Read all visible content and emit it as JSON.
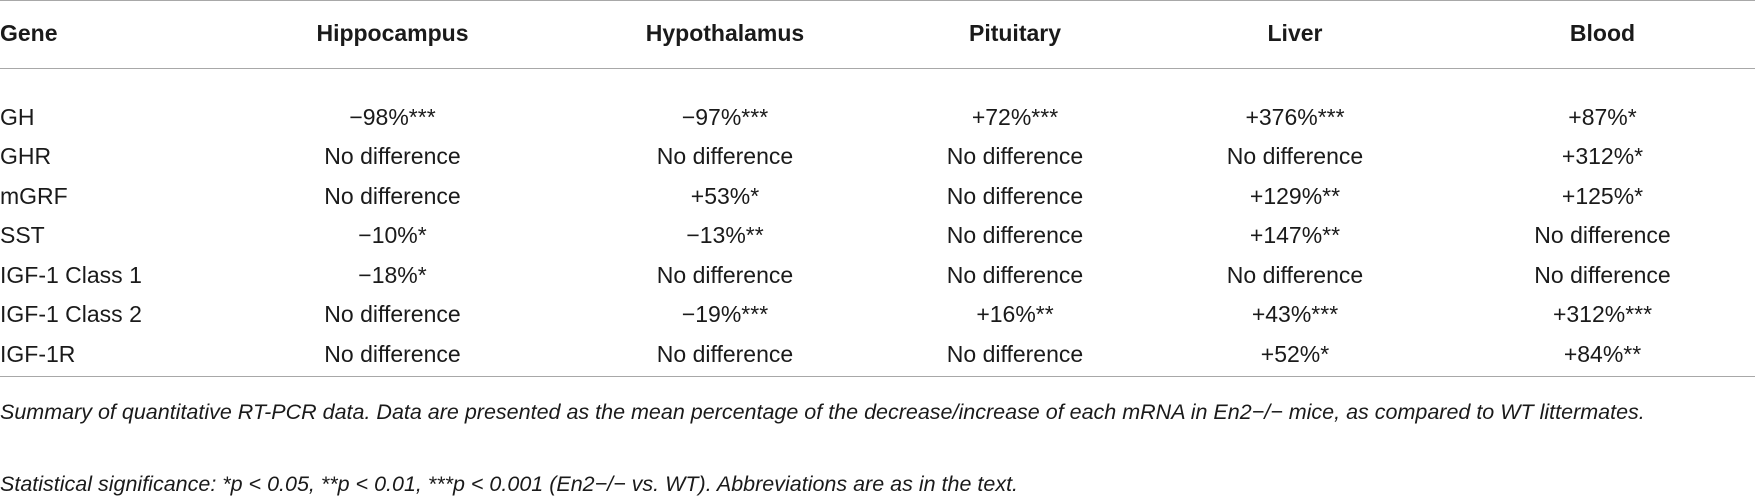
{
  "table": {
    "columns": [
      "Gene",
      "Hippocampus",
      "Hypothalamus",
      "Pituitary",
      "Liver",
      "Blood"
    ],
    "rows": [
      {
        "gene": "GH",
        "values": [
          "−98%***",
          "−97%***",
          "+72%***",
          "+376%***",
          "+87%*"
        ]
      },
      {
        "gene": "GHR",
        "values": [
          "No difference",
          "No difference",
          "No difference",
          "No difference",
          "+312%*"
        ]
      },
      {
        "gene": "mGRF",
        "values": [
          "No difference",
          "+53%*",
          "No difference",
          "+129%**",
          "+125%*"
        ]
      },
      {
        "gene": "SST",
        "values": [
          "−10%*",
          "−13%**",
          "No difference",
          "+147%**",
          "No difference"
        ]
      },
      {
        "gene": "IGF-1 Class 1",
        "values": [
          "−18%*",
          "No difference",
          "No difference",
          "No difference",
          "No difference"
        ]
      },
      {
        "gene": "IGF-1 Class 2",
        "values": [
          "No difference",
          "−19%***",
          "+16%**",
          "+43%***",
          "+312%***"
        ]
      },
      {
        "gene": "IGF-1R",
        "values": [
          "No difference",
          "No difference",
          "No difference",
          "+52%*",
          "+84%**"
        ]
      }
    ]
  },
  "footnotes": {
    "summary": "Summary of quantitative RT-PCR data. Data are presented as the mean percentage of the decrease/increase of each mRNA in En2−/− mice, as compared to WT littermates.",
    "significance": "Statistical significance: *p < 0.05, **p < 0.01, ***p < 0.001 (En2−/− vs. WT). Abbreviations are as in the text."
  }
}
